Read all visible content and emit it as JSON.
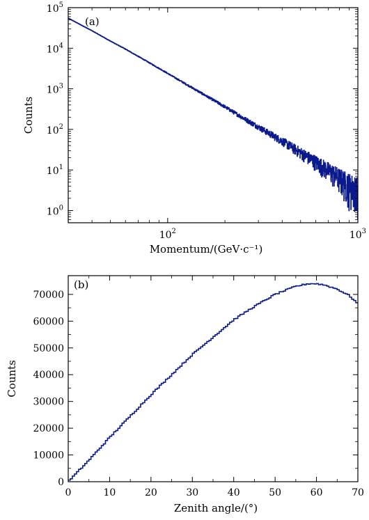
{
  "chart_data": [
    {
      "type": "line",
      "panel_label": "(a)",
      "xlabel": "Momentum/(GeV·c⁻¹)",
      "ylabel": "Counts",
      "x_scale": "log",
      "y_scale": "log",
      "xlim": [
        30,
        1000
      ],
      "ylim": [
        0.5,
        100000
      ],
      "x_ticks": [
        {
          "value": 100,
          "base": "10",
          "exp": "2"
        },
        {
          "value": 1000,
          "base": "10",
          "exp": "3"
        }
      ],
      "y_ticks": [
        {
          "value": 1,
          "base": "10",
          "exp": "0"
        },
        {
          "value": 10,
          "base": "10",
          "exp": "1"
        },
        {
          "value": 100,
          "base": "10",
          "exp": "2"
        },
        {
          "value": 1000,
          "base": "10",
          "exp": "3"
        },
        {
          "value": 10000,
          "base": "10",
          "exp": "4"
        },
        {
          "value": 100000,
          "base": "10",
          "exp": "5"
        }
      ],
      "grid": false,
      "series": [
        {
          "color": "#0a1a8c",
          "x": [
            30,
            40,
            50,
            60,
            70,
            80,
            100,
            120,
            150,
            200,
            250,
            300,
            400,
            500,
            600,
            700,
            800,
            1000
          ],
          "y": [
            55000,
            27000,
            15000,
            9500,
            6300,
            4400,
            2400,
            1450,
            790,
            360,
            190,
            115,
            52,
            27,
            16,
            10,
            6.5,
            3.3
          ]
        }
      ]
    },
    {
      "type": "line",
      "panel_label": "(b)",
      "xlabel": "Zenith angle/(°)",
      "ylabel": "Counts",
      "xlim": [
        0,
        70
      ],
      "ylim": [
        0,
        77000
      ],
      "x_ticks": [
        0,
        10,
        20,
        30,
        40,
        50,
        60,
        70
      ],
      "y_ticks": [
        0,
        10000,
        20000,
        30000,
        40000,
        50000,
        60000,
        70000
      ],
      "grid": false,
      "series": [
        {
          "color": "#0a1a8c",
          "x": [
            0,
            5,
            10,
            15,
            20,
            25,
            30,
            35,
            40,
            45,
            50,
            55,
            58,
            60,
            62,
            65,
            68,
            70
          ],
          "y": [
            0,
            8000,
            16500,
            24500,
            32500,
            40000,
            47500,
            54000,
            60500,
            65500,
            70000,
            73000,
            74000,
            74000,
            73500,
            72000,
            69500,
            66500
          ]
        }
      ]
    }
  ]
}
